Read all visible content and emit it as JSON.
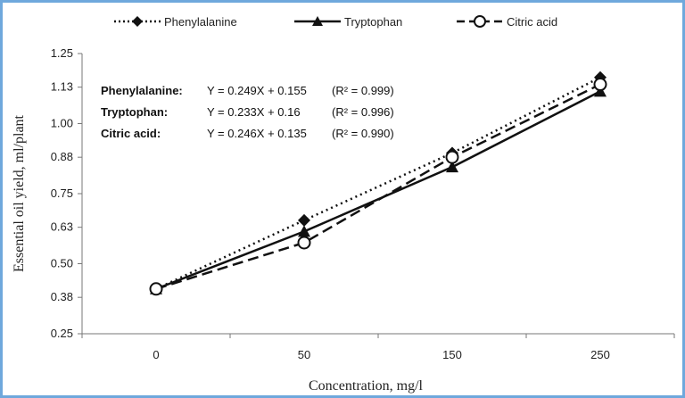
{
  "chart_data": {
    "type": "line",
    "x": [
      "0",
      "50",
      "150",
      "250"
    ],
    "xlabel": "Concentration, mg/l",
    "ylabel": "Essential oil yield, ml/plant",
    "ylim": [
      0.25,
      1.25
    ],
    "yticks": [
      "0.25",
      "0.38",
      "0.50",
      "0.63",
      "0.75",
      "0.88",
      "1.00",
      "1.13",
      "1.25"
    ],
    "grid": false,
    "legend_position": "top",
    "series": [
      {
        "name": "Phenylalanine",
        "values": [
          0.41,
          0.655,
          0.895,
          1.165
        ],
        "marker": "diamond",
        "line": "dotted",
        "color": "#111111"
      },
      {
        "name": "Tryptophan",
        "values": [
          0.41,
          0.615,
          0.845,
          1.115
        ],
        "marker": "triangle",
        "line": "solid",
        "color": "#111111"
      },
      {
        "name": "Citric acid",
        "values": [
          0.41,
          0.575,
          0.88,
          1.14
        ],
        "marker": "circle-open",
        "line": "dashed",
        "color": "#111111"
      }
    ],
    "annotations": [
      {
        "label": "Phenylalanine:",
        "equation": "Y = 0.249X + 0.155",
        "r2": "(R² = 0.999)"
      },
      {
        "label": "Tryptophan:",
        "equation": "Y = 0.233X + 0.16",
        "r2": "(R² = 0.996)"
      },
      {
        "label": "Citric acid:",
        "equation": "Y = 0.246X + 0.135",
        "r2": "(R² = 0.990)"
      }
    ]
  }
}
